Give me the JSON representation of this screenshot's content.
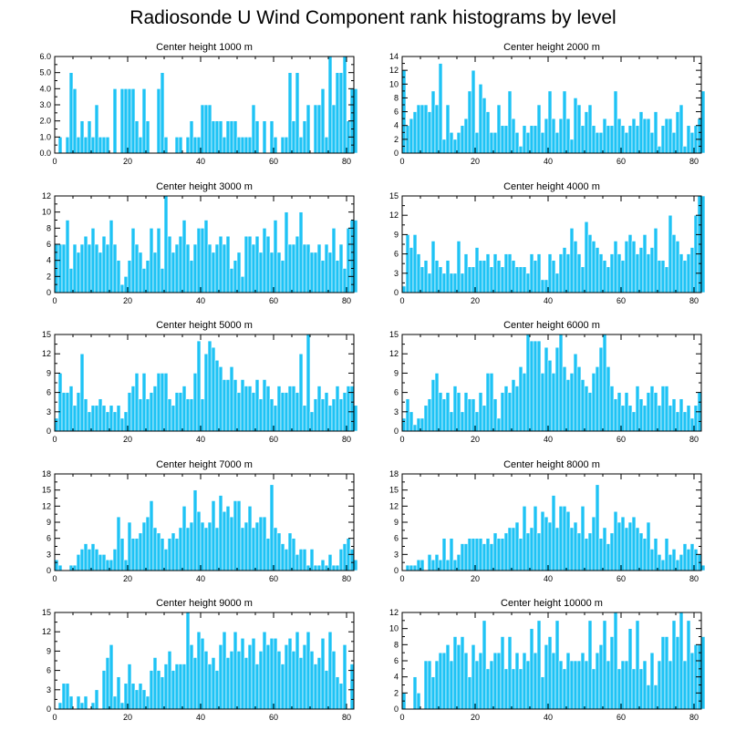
{
  "title": "Radiosonde U Wind Component rank histograms by level",
  "colors": {
    "bar": "#1ec3f5",
    "bar_edge": "#ffffff",
    "axis": "#000000"
  },
  "chart_data": [
    {
      "type": "bar",
      "title": "Center height 1000 m",
      "xlim": [
        0,
        82
      ],
      "ylim": [
        0,
        6
      ],
      "xticks": [
        0,
        20,
        40,
        60,
        80
      ],
      "yticks": [
        0,
        1,
        2,
        3,
        4,
        5,
        6
      ],
      "ytick_labels": [
        "0.0",
        "1.0",
        "2.0",
        "3.0",
        "4.0",
        "5.0",
        "6.0"
      ],
      "values": [
        0,
        1,
        0,
        1,
        5,
        4,
        1,
        2,
        1,
        2,
        1,
        3,
        1,
        1,
        1,
        0,
        4,
        0,
        4,
        4,
        4,
        4,
        2,
        1,
        4,
        2,
        0,
        0,
        4,
        5,
        1,
        0,
        0,
        1,
        1,
        0,
        1,
        2,
        1,
        1,
        3,
        3,
        3,
        2,
        2,
        2,
        1,
        2,
        2,
        2,
        1,
        1,
        1,
        1,
        3,
        2,
        0,
        2,
        0,
        2,
        1,
        0,
        1,
        1,
        5,
        2,
        5,
        1,
        2,
        3,
        0,
        3,
        3,
        4,
        1,
        6,
        3,
        5,
        5,
        6,
        2,
        4,
        4
      ]
    },
    {
      "type": "bar",
      "title": "Center height 2000 m",
      "xlim": [
        0,
        82
      ],
      "ylim": [
        0,
        14
      ],
      "xticks": [
        0,
        20,
        40,
        60,
        80
      ],
      "yticks": [
        0,
        2,
        4,
        6,
        8,
        10,
        12,
        14
      ],
      "ytick_labels": [
        "0",
        "2",
        "4",
        "6",
        "8",
        "10",
        "12",
        "14"
      ],
      "values": [
        12,
        4,
        5,
        6,
        7,
        7,
        7,
        6,
        9,
        7,
        13,
        2,
        7,
        3,
        2,
        3,
        4,
        5,
        9,
        12,
        3,
        10,
        8,
        6,
        3,
        3,
        7,
        4,
        4,
        9,
        5,
        3,
        1,
        4,
        3,
        4,
        4,
        7,
        3,
        5,
        9,
        5,
        3,
        5,
        9,
        5,
        2,
        8,
        7,
        4,
        6,
        7,
        4,
        3,
        3,
        5,
        4,
        4,
        9,
        5,
        4,
        3,
        4,
        5,
        4,
        6,
        5,
        5,
        3,
        6,
        1,
        4,
        5,
        5,
        3,
        6,
        7,
        1,
        4,
        3,
        4,
        5,
        9
      ]
    },
    {
      "type": "bar",
      "title": "Center height 3000 m",
      "xlim": [
        0,
        82
      ],
      "ylim": [
        0,
        12
      ],
      "xticks": [
        0,
        20,
        40,
        60,
        80
      ],
      "yticks": [
        0,
        2,
        4,
        6,
        8,
        10,
        12
      ],
      "ytick_labels": [
        "0",
        "2",
        "4",
        "6",
        "8",
        "10",
        "12"
      ],
      "values": [
        6,
        6,
        6,
        9,
        3,
        6,
        5,
        6,
        7,
        6,
        8,
        6,
        5,
        7,
        6,
        9,
        6,
        4,
        1,
        2,
        4,
        8,
        6,
        5,
        3,
        4,
        8,
        5,
        8,
        3,
        12,
        7,
        5,
        6,
        7,
        9,
        6,
        4,
        6,
        8,
        8,
        9,
        6,
        5,
        6,
        7,
        6,
        7,
        3,
        4,
        5,
        2,
        7,
        7,
        6,
        7,
        5,
        8,
        7,
        5,
        9,
        5,
        4,
        10,
        6,
        6,
        7,
        10,
        6,
        6,
        5,
        5,
        6,
        4,
        6,
        5,
        8,
        4,
        6,
        3,
        8,
        9,
        9
      ]
    },
    {
      "type": "bar",
      "title": "Center height 4000 m",
      "xlim": [
        0,
        82
      ],
      "ylim": [
        0,
        15
      ],
      "xticks": [
        0,
        20,
        40,
        60,
        80
      ],
      "yticks": [
        0,
        3,
        6,
        9,
        12,
        15
      ],
      "ytick_labels": [
        "0",
        "3",
        "6",
        "9",
        "12",
        "15"
      ],
      "values": [
        1,
        9,
        7,
        9,
        6,
        4,
        5,
        3,
        8,
        5,
        4,
        3,
        5,
        3,
        3,
        8,
        3,
        6,
        4,
        4,
        7,
        5,
        5,
        6,
        4,
        6,
        5,
        4,
        6,
        6,
        5,
        4,
        4,
        4,
        3,
        6,
        5,
        6,
        2,
        2,
        6,
        5,
        3,
        6,
        7,
        6,
        10,
        8,
        6,
        4,
        11,
        9,
        8,
        7,
        6,
        5,
        4,
        6,
        8,
        6,
        5,
        8,
        9,
        8,
        6,
        7,
        9,
        6,
        7,
        10,
        5,
        5,
        4,
        12,
        9,
        8,
        6,
        5,
        6,
        7,
        12,
        15,
        15
      ]
    },
    {
      "type": "bar",
      "title": "Center height 5000 m",
      "xlim": [
        0,
        82
      ],
      "ylim": [
        0,
        15
      ],
      "xticks": [
        0,
        20,
        40,
        60,
        80
      ],
      "yticks": [
        0,
        3,
        6,
        9,
        12,
        15
      ],
      "ytick_labels": [
        "0",
        "3",
        "6",
        "9",
        "12",
        "15"
      ],
      "values": [
        2,
        9,
        6,
        6,
        7,
        4,
        6,
        12,
        5,
        3,
        4,
        4,
        5,
        4,
        3,
        4,
        3,
        4,
        2,
        3,
        6,
        7,
        9,
        5,
        9,
        5,
        6,
        7,
        9,
        9,
        9,
        5,
        4,
        6,
        6,
        7,
        5,
        5,
        9,
        14,
        5,
        12,
        14,
        13,
        11,
        10,
        8,
        8,
        10,
        8,
        6,
        8,
        7,
        7,
        6,
        8,
        5,
        8,
        7,
        5,
        4,
        7,
        6,
        6,
        7,
        7,
        6,
        12,
        4,
        15,
        3,
        5,
        7,
        5,
        6,
        4,
        5,
        7,
        5,
        6,
        7,
        7,
        4
      ]
    },
    {
      "type": "bar",
      "title": "Center height 6000 m",
      "xlim": [
        0,
        82
      ],
      "ylim": [
        0,
        15
      ],
      "xticks": [
        0,
        20,
        40,
        60,
        80
      ],
      "yticks": [
        0,
        3,
        6,
        9,
        12,
        15
      ],
      "ytick_labels": [
        "0",
        "3",
        "6",
        "9",
        "12",
        "15"
      ],
      "values": [
        2,
        5,
        3,
        1,
        2,
        2,
        4,
        5,
        8,
        9,
        6,
        5,
        6,
        3,
        7,
        6,
        3,
        6,
        5,
        5,
        3,
        6,
        4,
        9,
        9,
        5,
        2,
        6,
        7,
        6,
        8,
        7,
        10,
        9,
        15,
        14,
        14,
        14,
        9,
        13,
        11,
        9,
        13,
        15,
        10,
        8,
        9,
        12,
        10,
        8,
        7,
        6,
        9,
        10,
        13,
        15,
        10,
        7,
        5,
        6,
        4,
        6,
        4,
        3,
        7,
        5,
        4,
        6,
        7,
        6,
        4,
        7,
        7,
        4,
        5,
        3,
        5,
        3,
        4,
        2,
        4,
        6,
        0
      ]
    },
    {
      "type": "bar",
      "title": "Center height 7000 m",
      "xlim": [
        0,
        82
      ],
      "ylim": [
        0,
        18
      ],
      "xticks": [
        0,
        20,
        40,
        60,
        80
      ],
      "yticks": [
        0,
        3,
        6,
        9,
        12,
        15,
        18
      ],
      "ytick_labels": [
        "0",
        "3",
        "6",
        "9",
        "12",
        "15",
        "18"
      ],
      "values": [
        2,
        1,
        0,
        0,
        1,
        1,
        3,
        4,
        5,
        4,
        5,
        4,
        3,
        3,
        2,
        2,
        4,
        10,
        6,
        2,
        9,
        6,
        6,
        7,
        9,
        10,
        13,
        8,
        7,
        6,
        4,
        6,
        7,
        6,
        8,
        12,
        8,
        9,
        15,
        11,
        9,
        8,
        9,
        13,
        8,
        14,
        11,
        12,
        10,
        13,
        13,
        8,
        9,
        12,
        8,
        9,
        10,
        10,
        6,
        16,
        8,
        7,
        5,
        4,
        7,
        6,
        3,
        4,
        4,
        1,
        4,
        1,
        1,
        2,
        1,
        3,
        1,
        1,
        4,
        5,
        6,
        4,
        2
      ]
    },
    {
      "type": "bar",
      "title": "Center height 8000 m",
      "xlim": [
        0,
        82
      ],
      "ylim": [
        0,
        18
      ],
      "xticks": [
        0,
        20,
        40,
        60,
        80
      ],
      "yticks": [
        0,
        3,
        6,
        9,
        12,
        15,
        18
      ],
      "ytick_labels": [
        "0",
        "3",
        "6",
        "9",
        "12",
        "15",
        "18"
      ],
      "values": [
        0,
        1,
        1,
        1,
        2,
        2,
        0,
        3,
        2,
        3,
        2,
        6,
        2,
        6,
        2,
        3,
        5,
        5,
        6,
        6,
        6,
        6,
        5,
        6,
        5,
        7,
        6,
        6,
        7,
        8,
        8,
        9,
        6,
        12,
        7,
        8,
        12,
        7,
        11,
        10,
        9,
        14,
        8,
        12,
        12,
        11,
        8,
        9,
        7,
        12,
        6,
        7,
        10,
        16,
        6,
        8,
        5,
        7,
        11,
        9,
        10,
        8,
        9,
        10,
        8,
        7,
        6,
        9,
        4,
        6,
        3,
        2,
        6,
        3,
        4,
        2,
        3,
        5,
        4,
        5,
        4,
        3,
        1
      ]
    },
    {
      "type": "bar",
      "title": "Center height 9000 m",
      "xlim": [
        0,
        82
      ],
      "ylim": [
        0,
        15
      ],
      "xticks": [
        0,
        20,
        40,
        60,
        80
      ],
      "yticks": [
        0,
        3,
        6,
        9,
        12,
        15
      ],
      "ytick_labels": [
        "0",
        "3",
        "6",
        "9",
        "12",
        "15"
      ],
      "values": [
        0,
        1,
        4,
        4,
        2,
        0,
        2,
        1,
        2,
        0,
        1,
        3,
        0,
        6,
        8,
        10,
        2,
        5,
        1,
        4,
        7,
        4,
        3,
        4,
        3,
        2,
        6,
        8,
        6,
        5,
        7,
        9,
        6,
        7,
        7,
        7,
        15,
        10,
        8,
        12,
        11,
        9,
        7,
        8,
        6,
        10,
        12,
        8,
        9,
        12,
        9,
        11,
        8,
        10,
        11,
        7,
        9,
        12,
        10,
        11,
        11,
        9,
        7,
        10,
        11,
        9,
        12,
        8,
        10,
        12,
        9,
        7,
        8,
        11,
        6,
        12,
        9,
        5,
        4,
        10,
        0,
        7,
        0
      ]
    },
    {
      "type": "bar",
      "title": "Center height 10000 m",
      "xlim": [
        0,
        82
      ],
      "ylim": [
        0,
        12
      ],
      "xticks": [
        0,
        20,
        40,
        60,
        80
      ],
      "yticks": [
        0,
        2,
        4,
        6,
        8,
        10,
        12
      ],
      "ytick_labels": [
        "0",
        "2",
        "4",
        "6",
        "8",
        "10",
        "12"
      ],
      "values": [
        2,
        0,
        0,
        4,
        2,
        0,
        6,
        6,
        4,
        6,
        7,
        7,
        8,
        6,
        9,
        8,
        9,
        7,
        4,
        8,
        6,
        7,
        11,
        5,
        6,
        7,
        7,
        9,
        5,
        9,
        5,
        7,
        5,
        7,
        6,
        10,
        7,
        11,
        4,
        8,
        9,
        7,
        11,
        6,
        5,
        7,
        6,
        6,
        6,
        7,
        6,
        11,
        5,
        7,
        8,
        11,
        6,
        9,
        12,
        5,
        6,
        6,
        10,
        5,
        11,
        5,
        6,
        3,
        7,
        3,
        6,
        9,
        9,
        6,
        11,
        9,
        12,
        6,
        11,
        7,
        8,
        8,
        9
      ]
    }
  ]
}
